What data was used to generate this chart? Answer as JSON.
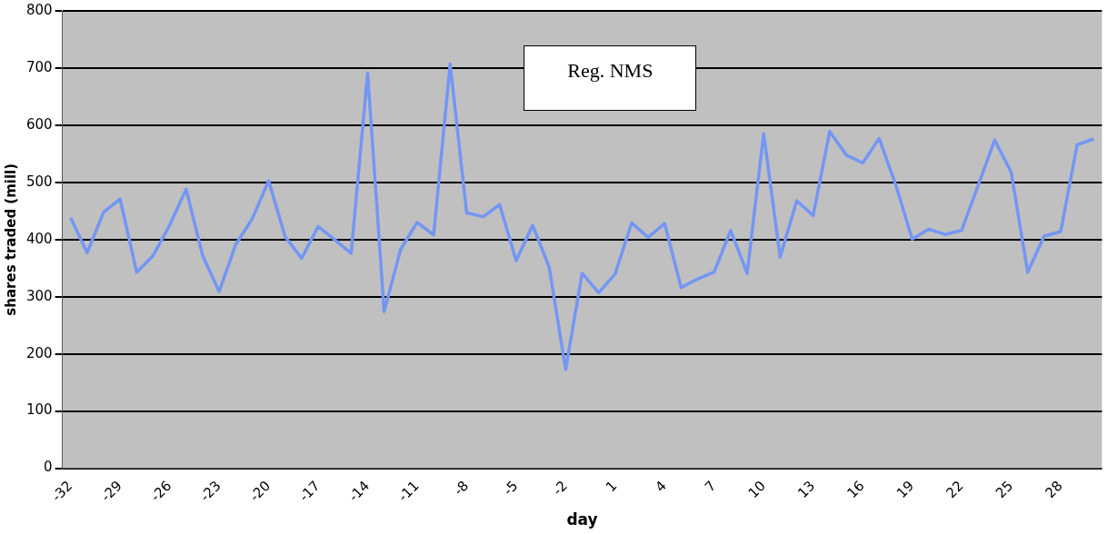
{
  "chart_data": {
    "type": "line",
    "xlabel": "day",
    "ylabel": "shares traded (mill)",
    "annotations": [
      "Reg. NMS"
    ],
    "categories": [
      "-32",
      null,
      null,
      "-29",
      null,
      null,
      "-26",
      null,
      null,
      "-23",
      null,
      null,
      "-20",
      null,
      null,
      "-17",
      null,
      null,
      "-14",
      null,
      null,
      "-11",
      null,
      null,
      "-8",
      null,
      null,
      "-5",
      null,
      null,
      "-2",
      null,
      null,
      "1",
      null,
      null,
      "4",
      null,
      null,
      "7",
      null,
      null,
      "10",
      null,
      null,
      "13",
      null,
      null,
      "16",
      null,
      null,
      "19",
      null,
      null,
      "22",
      null,
      null,
      "25",
      null,
      null,
      "28",
      null,
      null
    ],
    "series": [
      {
        "color": "#7396f5",
        "values": [
          438,
          377,
          448,
          471,
          343,
          372,
          425,
          488,
          372,
          309,
          391,
          436,
          503,
          405,
          367,
          423,
          400,
          376,
          691,
          274,
          383,
          430,
          408,
          707,
          447,
          440,
          461,
          363,
          425,
          352,
          173,
          341,
          307,
          340,
          429,
          404,
          428,
          316,
          331,
          343,
          416,
          341,
          585,
          369,
          468,
          442,
          589,
          548,
          534,
          577,
          496,
          401,
          418,
          409,
          416,
          495,
          574,
          518,
          343,
          406,
          414,
          566,
          576
        ]
      }
    ],
    "ylim": [
      0,
      800
    ],
    "yticks": [
      0,
      100,
      200,
      300,
      400,
      500,
      600,
      700,
      800
    ],
    "grid": "y",
    "legend": false,
    "marker": "none",
    "line_style": "solid"
  }
}
